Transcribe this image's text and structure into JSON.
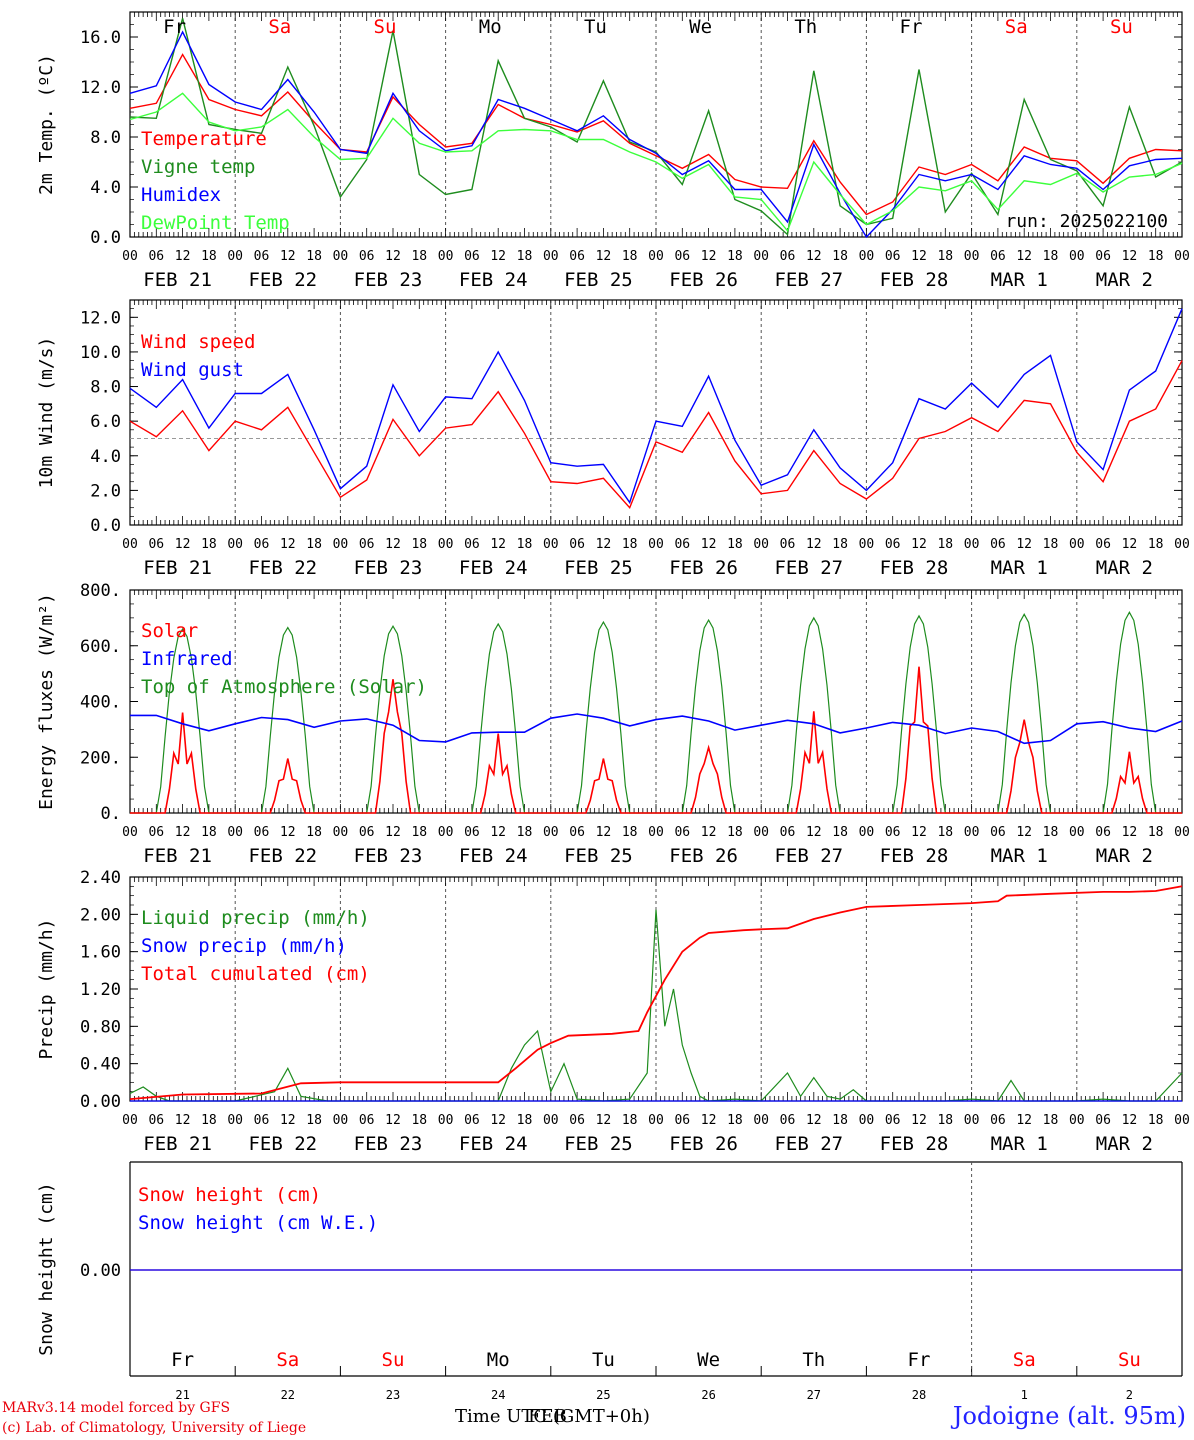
{
  "meta": {
    "model_credit": "MARv3.14 model forced by GFS",
    "lab_credit": "(c) Lab. of Climatology, University of Liege",
    "time_axis_label": "Time UTC (GMT+0h)",
    "time_axis_overlap": "FEB",
    "station": "Jodoigne (alt. 95m)",
    "run_label": "run: 2025022100"
  },
  "days": [
    {
      "abbr": "Fr",
      "weekend": false,
      "date": "FEB 21",
      "num": "21"
    },
    {
      "abbr": "Sa",
      "weekend": true,
      "date": "FEB 22",
      "num": "22"
    },
    {
      "abbr": "Su",
      "weekend": true,
      "date": "FEB 23",
      "num": "23"
    },
    {
      "abbr": "Mo",
      "weekend": false,
      "date": "FEB 24",
      "num": "24"
    },
    {
      "abbr": "Tu",
      "weekend": false,
      "date": "FEB 25",
      "num": "25"
    },
    {
      "abbr": "We",
      "weekend": false,
      "date": "FEB 26",
      "num": "26"
    },
    {
      "abbr": "Th",
      "weekend": false,
      "date": "FEB 27",
      "num": "27"
    },
    {
      "abbr": "Fr",
      "weekend": false,
      "date": "FEB 28",
      "num": "28"
    },
    {
      "abbr": "Sa",
      "weekend": true,
      "date": "MAR  1",
      "num": "1"
    },
    {
      "abbr": "Su",
      "weekend": true,
      "date": "MAR  2",
      "num": "2"
    }
  ],
  "hour_ticks": [
    "00",
    "06",
    "12",
    "18"
  ],
  "colors": {
    "red": "#ff0000",
    "green": "#1e8c1e",
    "blue": "#0000ff",
    "lightgreen": "#3cff3c",
    "weekend": "#ff0000",
    "grid": "#555555"
  },
  "chart_data": [
    {
      "type": "line",
      "ylabel": "2m Temp. (ºC)",
      "ylim": [
        0,
        18
      ],
      "yticks": [
        "0.0",
        "4.0",
        "8.0",
        "12.0",
        "16.0"
      ],
      "ytick_values": [
        0,
        4,
        8,
        12,
        16
      ],
      "x_unit": "hours since FEB 21 00 UTC (6-hourly)",
      "legend": [
        "Temperature",
        "Vigne temp",
        "Humidex",
        "DewPoint Temp"
      ],
      "series": [
        {
          "name": "Temperature",
          "color": "red",
          "x": [
            0,
            6,
            12,
            18,
            24,
            30,
            36,
            42,
            48,
            54,
            60,
            66,
            72,
            78,
            84,
            90,
            96,
            102,
            108,
            114,
            120,
            126,
            132,
            138,
            144,
            150,
            156,
            162,
            168,
            174,
            180,
            186,
            192,
            198,
            204,
            210,
            216,
            222,
            228,
            234,
            240
          ],
          "values": [
            10.3,
            10.7,
            14.6,
            11.0,
            10.2,
            9.7,
            11.6,
            9.2,
            7.0,
            6.8,
            11.2,
            9.0,
            7.2,
            7.5,
            10.6,
            9.5,
            9.0,
            8.4,
            9.3,
            7.5,
            6.5,
            5.5,
            6.6,
            4.6,
            4.0,
            3.9,
            7.7,
            4.4,
            1.8,
            2.8,
            5.6,
            5.0,
            5.8,
            4.5,
            7.2,
            6.3,
            6.1,
            4.3,
            6.3,
            7.0,
            6.9
          ]
        },
        {
          "name": "Vigne temp",
          "color": "green",
          "x": [
            0,
            6,
            12,
            18,
            24,
            30,
            36,
            42,
            48,
            54,
            60,
            66,
            72,
            78,
            84,
            90,
            96,
            102,
            108,
            114,
            120,
            126,
            132,
            138,
            144,
            150,
            156,
            162,
            168,
            174,
            180,
            186,
            192,
            198,
            204,
            210,
            216,
            222,
            228,
            234,
            240
          ],
          "values": [
            9.6,
            9.5,
            17.5,
            9.0,
            8.6,
            8.3,
            13.6,
            8.9,
            3.2,
            6.2,
            16.5,
            5.0,
            3.4,
            3.8,
            14.1,
            9.5,
            8.8,
            7.6,
            12.5,
            7.6,
            6.8,
            4.2,
            10.1,
            3.0,
            2.1,
            0.2,
            13.3,
            2.5,
            1.0,
            1.5,
            13.4,
            2.0,
            5.1,
            1.8,
            11.0,
            6.2,
            5.3,
            2.5,
            10.4,
            4.8,
            6.0
          ]
        },
        {
          "name": "Humidex",
          "color": "blue",
          "x": [
            0,
            6,
            12,
            18,
            24,
            30,
            36,
            42,
            48,
            54,
            60,
            66,
            72,
            78,
            84,
            90,
            96,
            102,
            108,
            114,
            120,
            126,
            132,
            138,
            144,
            150,
            156,
            162,
            168,
            174,
            180,
            186,
            192,
            198,
            204,
            210,
            216,
            222,
            228,
            234,
            240
          ],
          "values": [
            11.5,
            12.1,
            16.4,
            12.2,
            10.8,
            10.2,
            12.6,
            10.0,
            7.0,
            6.7,
            11.5,
            8.5,
            6.9,
            7.3,
            11.0,
            10.3,
            9.4,
            8.5,
            9.7,
            7.8,
            6.7,
            5.0,
            6.1,
            3.8,
            3.8,
            1.2,
            7.4,
            3.5,
            0.0,
            2.2,
            5.0,
            4.5,
            5.0,
            3.8,
            6.5,
            5.8,
            5.5,
            3.8,
            5.7,
            6.2,
            6.3
          ]
        },
        {
          "name": "DewPoint Temp",
          "color": "lightgreen",
          "x": [
            0,
            6,
            12,
            18,
            24,
            30,
            36,
            42,
            48,
            54,
            60,
            66,
            72,
            78,
            84,
            90,
            96,
            102,
            108,
            114,
            120,
            126,
            132,
            138,
            144,
            150,
            156,
            162,
            168,
            174,
            180,
            186,
            192,
            198,
            204,
            210,
            216,
            222,
            228,
            234,
            240
          ],
          "values": [
            9.4,
            10.0,
            11.5,
            9.2,
            8.5,
            8.8,
            10.2,
            8.0,
            6.2,
            6.3,
            9.5,
            7.5,
            6.8,
            6.9,
            8.5,
            8.6,
            8.5,
            7.8,
            7.8,
            6.8,
            6.0,
            4.7,
            5.8,
            3.2,
            3.0,
            0.5,
            6.0,
            3.4,
            1.0,
            2.1,
            4.0,
            3.7,
            4.5,
            2.2,
            4.5,
            4.2,
            5.1,
            3.6,
            4.8,
            5.0,
            5.9
          ]
        }
      ]
    },
    {
      "type": "line",
      "ylabel": "10m Wind (m/s)",
      "ylim": [
        0,
        13
      ],
      "yticks": [
        "0.0",
        "2.0",
        "4.0",
        "6.0",
        "8.0",
        "10.0",
        "12.0"
      ],
      "ytick_values": [
        0,
        2,
        4,
        6,
        8,
        10,
        12
      ],
      "ref_line": 5.0,
      "legend": [
        "Wind speed",
        "Wind gust"
      ],
      "series": [
        {
          "name": "Wind speed",
          "color": "red",
          "x": [
            0,
            6,
            12,
            18,
            24,
            30,
            36,
            42,
            48,
            54,
            60,
            66,
            72,
            78,
            84,
            90,
            96,
            102,
            108,
            114,
            120,
            126,
            132,
            138,
            144,
            150,
            156,
            162,
            168,
            174,
            180,
            186,
            192,
            198,
            204,
            210,
            216,
            222,
            228,
            234,
            240
          ],
          "values": [
            6.0,
            5.1,
            6.6,
            4.3,
            6.0,
            5.5,
            6.8,
            4.2,
            1.6,
            2.6,
            6.1,
            4.0,
            5.6,
            5.8,
            7.7,
            5.3,
            2.5,
            2.4,
            2.7,
            1.0,
            4.8,
            4.2,
            6.5,
            3.7,
            1.8,
            2.0,
            4.3,
            2.4,
            1.5,
            2.7,
            5.0,
            5.4,
            6.2,
            5.4,
            7.2,
            7.0,
            4.2,
            2.5,
            6.0,
            6.7,
            9.5
          ]
        },
        {
          "name": "Wind gust",
          "color": "blue",
          "x": [
            0,
            6,
            12,
            18,
            24,
            30,
            36,
            42,
            48,
            54,
            60,
            66,
            72,
            78,
            84,
            90,
            96,
            102,
            108,
            114,
            120,
            126,
            132,
            138,
            144,
            150,
            156,
            162,
            168,
            174,
            180,
            186,
            192,
            198,
            204,
            210,
            216,
            222,
            228,
            234,
            240
          ],
          "values": [
            7.9,
            6.8,
            8.4,
            5.6,
            7.6,
            7.6,
            8.7,
            5.5,
            2.1,
            3.4,
            8.1,
            5.4,
            7.4,
            7.3,
            10.0,
            7.2,
            3.6,
            3.4,
            3.5,
            1.3,
            6.0,
            5.7,
            8.6,
            4.9,
            2.3,
            2.9,
            5.5,
            3.3,
            2.0,
            3.6,
            7.3,
            6.7,
            8.2,
            6.8,
            8.7,
            9.8,
            4.8,
            3.2,
            7.8,
            8.9,
            12.5
          ]
        }
      ]
    },
    {
      "type": "line",
      "ylabel": "Energy fluxes (W/m²)",
      "ylim": [
        0,
        800
      ],
      "yticks": [
        "0.",
        "200.",
        "400.",
        "600.",
        "800."
      ],
      "ytick_values": [
        0,
        200,
        400,
        600,
        800
      ],
      "legend": [
        "Solar",
        "Infrared",
        "Top of Atmosphere (Solar)"
      ],
      "toa_peaks": [
        660,
        665,
        670,
        678,
        685,
        692,
        700,
        707,
        713,
        720
      ],
      "solar_peaks": [
        360,
        195,
        480,
        285,
        195,
        235,
        365,
        525,
        335,
        220
      ],
      "infrared": {
        "x": [
          0,
          12,
          24,
          36,
          48,
          60,
          72,
          84,
          96,
          108,
          120,
          132,
          144,
          156,
          168,
          180,
          192,
          204,
          216,
          228,
          240
        ],
        "values": [
          350,
          320,
          320,
          335,
          330,
          315,
          255,
          290,
          340,
          340,
          335,
          330,
          315,
          320,
          305,
          315,
          305,
          250,
          320,
          305,
          330
        ]
      },
      "series_names": {
        "solar": "Solar",
        "infrared": "Infrared",
        "toa": "Top of Atmosphere (Solar)"
      }
    },
    {
      "type": "line",
      "ylabel": "Precip (mm/h)",
      "ylim": [
        0,
        2.4
      ],
      "yticks": [
        "0.00",
        "0.40",
        "0.80",
        "1.20",
        "1.60",
        "2.00",
        "2.40"
      ],
      "ytick_values": [
        0,
        0.4,
        0.8,
        1.2,
        1.6,
        2.0,
        2.4
      ],
      "legend": [
        "Liquid precip (mm/h)",
        "Snow precip (mm/h)",
        "Total cumulated (cm)"
      ],
      "series": [
        {
          "name": "Liquid precip (mm/h)",
          "color": "green",
          "x": [
            0,
            3,
            6,
            9,
            12,
            24,
            33,
            36,
            39,
            45,
            48,
            60,
            72,
            84,
            87,
            90,
            93,
            96,
            99,
            102,
            108,
            114,
            118,
            120,
            122,
            124,
            126,
            128,
            130,
            132,
            138,
            144,
            150,
            153,
            156,
            159,
            162,
            165,
            168,
            174,
            180,
            186,
            192,
            198,
            201,
            204,
            210,
            216,
            222,
            228,
            234,
            240
          ],
          "values": [
            0.08,
            0.15,
            0.05,
            0.0,
            0.0,
            0.0,
            0.1,
            0.35,
            0.05,
            0.0,
            0.0,
            0.0,
            0.0,
            0.0,
            0.35,
            0.6,
            0.75,
            0.1,
            0.4,
            0.02,
            0.0,
            0.02,
            0.3,
            2.05,
            0.8,
            1.2,
            0.6,
            0.3,
            0.05,
            0.0,
            0.02,
            0.0,
            0.3,
            0.05,
            0.25,
            0.05,
            0.02,
            0.12,
            0.0,
            0.0,
            0.0,
            0.0,
            0.02,
            0.0,
            0.22,
            0.0,
            0.0,
            0.0,
            0.02,
            0.0,
            0.0,
            0.3
          ]
        },
        {
          "name": "Snow precip (mm/h)",
          "color": "blue",
          "x": [
            0,
            240
          ],
          "values": [
            0.0,
            0.0
          ]
        },
        {
          "name": "Total cumulated (cm)",
          "color": "red",
          "x": [
            0,
            12,
            30,
            39,
            48,
            60,
            72,
            84,
            88,
            93,
            96,
            100,
            110,
            116,
            118,
            122,
            126,
            130,
            132,
            140,
            144,
            150,
            156,
            162,
            168,
            180,
            192,
            198,
            200,
            210,
            222,
            228,
            234,
            240
          ],
          "values": [
            0.02,
            0.07,
            0.08,
            0.19,
            0.2,
            0.2,
            0.2,
            0.2,
            0.35,
            0.55,
            0.62,
            0.7,
            0.72,
            0.75,
            0.95,
            1.3,
            1.6,
            1.75,
            1.8,
            1.83,
            1.84,
            1.85,
            1.95,
            2.02,
            2.08,
            2.1,
            2.12,
            2.14,
            2.2,
            2.22,
            2.24,
            2.24,
            2.25,
            2.3
          ]
        }
      ]
    },
    {
      "type": "line",
      "ylabel": "Snow height (cm)",
      "ytick_label": "0.00",
      "legend": [
        "Snow height (cm)",
        "Snow height (cm W.E.)"
      ],
      "series": [
        {
          "name": "Snow height (cm)",
          "color": "red",
          "x": [
            0,
            240
          ],
          "values": [
            0.0,
            0.0
          ]
        },
        {
          "name": "Snow height (cm W.E.)",
          "color": "blue",
          "x": [
            0,
            240
          ],
          "values": [
            0.0,
            0.0
          ]
        }
      ]
    }
  ]
}
